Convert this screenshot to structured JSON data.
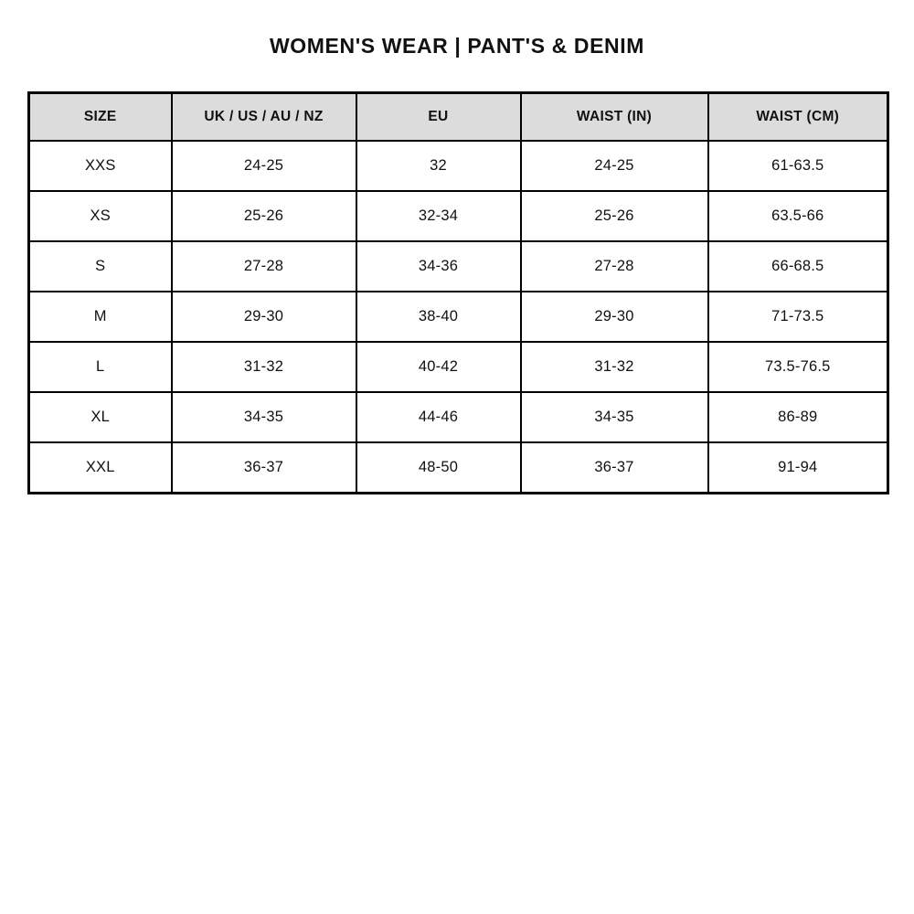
{
  "page": {
    "title": "WOMEN'S WEAR | PANT'S & DENIM"
  },
  "table": {
    "header_bg": "#dcdcdc",
    "border_color": "#000000",
    "columns": [
      "SIZE",
      "UK / US / AU / NZ",
      "EU",
      "WAIST (IN)",
      "WAIST (CM)"
    ],
    "rows": [
      [
        "XXS",
        "24-25",
        "32",
        "24-25",
        "61-63.5"
      ],
      [
        "XS",
        "25-26",
        "32-34",
        "25-26",
        "63.5-66"
      ],
      [
        "S",
        "27-28",
        "34-36",
        "27-28",
        "66-68.5"
      ],
      [
        "M",
        "29-30",
        "38-40",
        "29-30",
        "71-73.5"
      ],
      [
        "L",
        "31-32",
        "40-42",
        "31-32",
        "73.5-76.5"
      ],
      [
        "XL",
        "34-35",
        "44-46",
        "34-35",
        "86-89"
      ],
      [
        "XXL",
        "36-37",
        "48-50",
        "36-37",
        "91-94"
      ]
    ]
  }
}
